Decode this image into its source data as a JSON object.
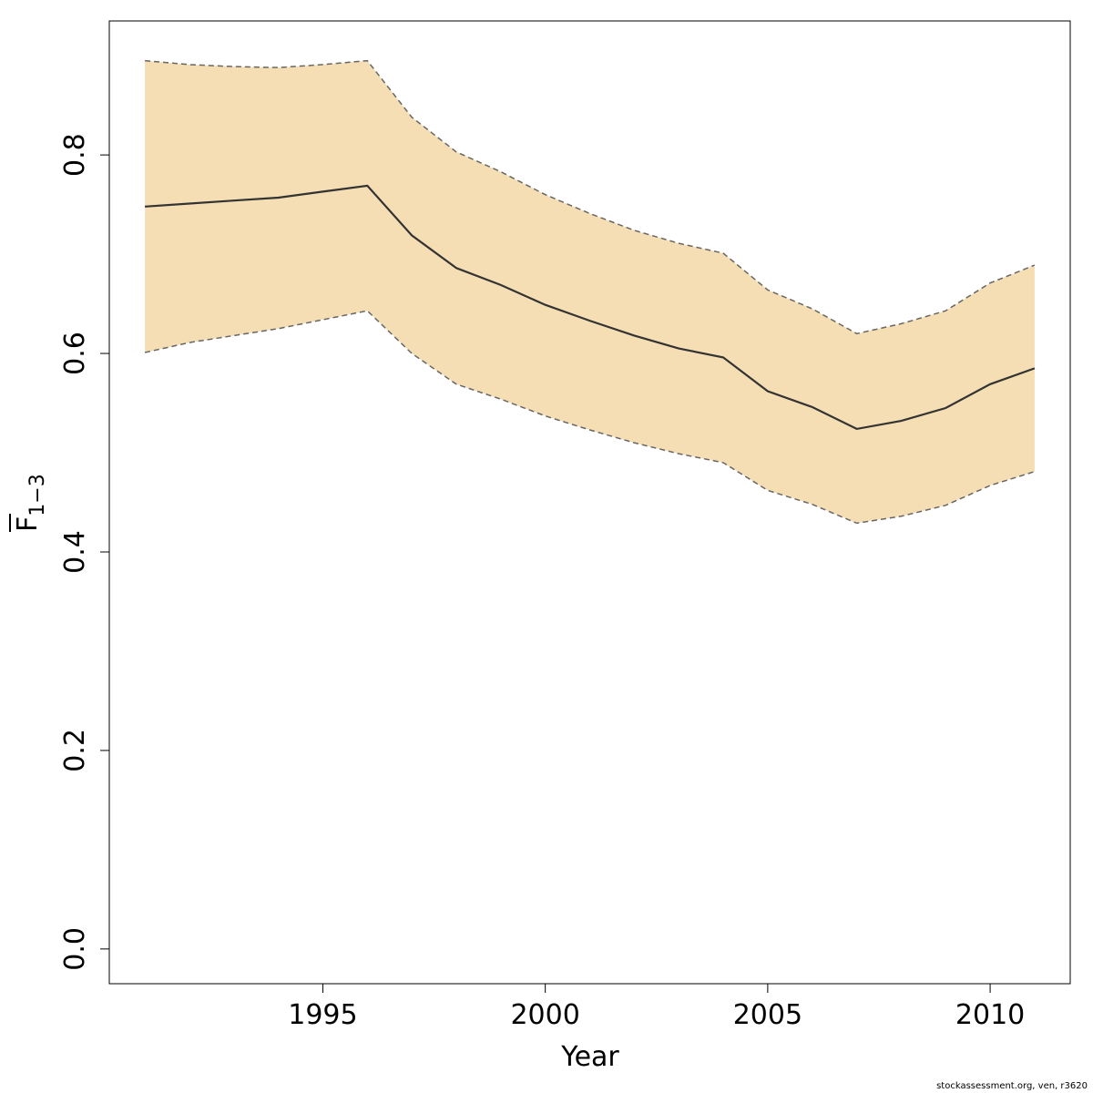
{
  "chart_data": {
    "type": "line",
    "title": "",
    "xlabel": "Year",
    "ylabel_main": "F",
    "ylabel_subscript": "1−3",
    "xlim": [
      1990.2,
      2011.8
    ],
    "ylim": [
      -0.035,
      0.935
    ],
    "x_ticks": [
      1995,
      2000,
      2005,
      2010
    ],
    "x_tick_labels": [
      "1995",
      "2000",
      "2005",
      "2010"
    ],
    "y_ticks": [
      0.0,
      0.2,
      0.4,
      0.6,
      0.8
    ],
    "y_tick_labels": [
      "0.0",
      "0.2",
      "0.4",
      "0.6",
      "0.8"
    ],
    "grid": false,
    "x": [
      1991,
      1992,
      1993,
      1994,
      1995,
      1996,
      1997,
      1998,
      1999,
      2000,
      2001,
      2002,
      2003,
      2004,
      2005,
      2006,
      2007,
      2008,
      2009,
      2010,
      2011
    ],
    "series": [
      {
        "role": "estimate",
        "values": [
          0.748,
          0.751,
          0.754,
          0.757,
          0.763,
          0.769,
          0.719,
          0.686,
          0.669,
          0.649,
          0.633,
          0.618,
          0.605,
          0.596,
          0.562,
          0.546,
          0.524,
          0.532,
          0.545,
          0.569,
          0.585
        ]
      },
      {
        "role": "upper",
        "values": [
          0.895,
          0.891,
          0.889,
          0.888,
          0.891,
          0.895,
          0.838,
          0.803,
          0.783,
          0.76,
          0.741,
          0.724,
          0.711,
          0.701,
          0.664,
          0.645,
          0.62,
          0.63,
          0.643,
          0.671,
          0.689
        ]
      },
      {
        "role": "lower",
        "values": [
          0.601,
          0.611,
          0.618,
          0.625,
          0.634,
          0.643,
          0.6,
          0.569,
          0.554,
          0.537,
          0.523,
          0.51,
          0.499,
          0.49,
          0.462,
          0.448,
          0.429,
          0.436,
          0.447,
          0.467,
          0.481
        ]
      }
    ],
    "colors": {
      "band_fill": "#f5deb3",
      "band_border": "#666666",
      "line": "#333333",
      "axis": "#000000"
    }
  },
  "footer": {
    "note": "stockassessment.org, ven, r3620"
  }
}
